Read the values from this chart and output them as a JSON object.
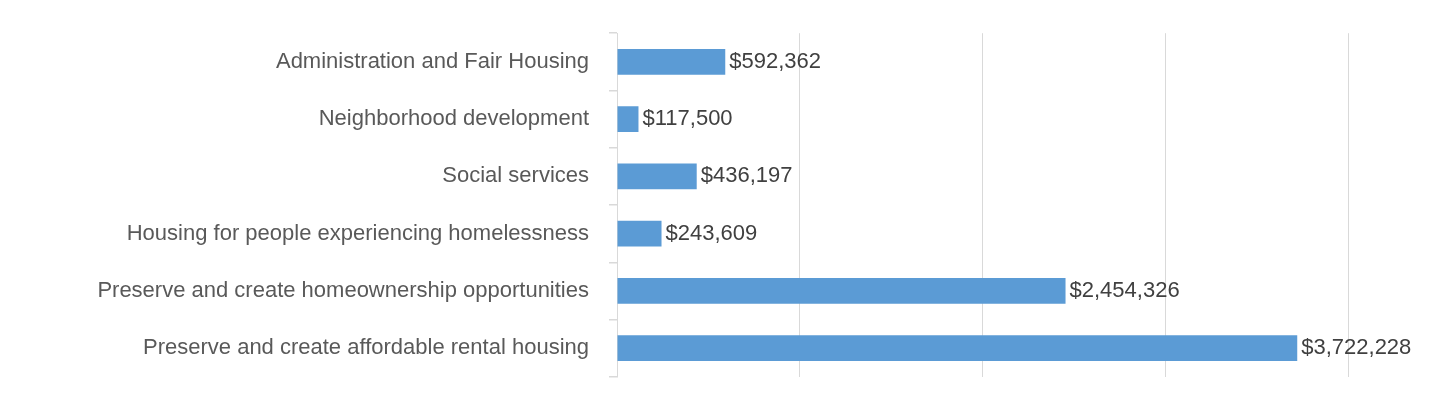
{
  "chart_data": {
    "type": "bar",
    "orientation": "horizontal",
    "categories": [
      "Administration and Fair Housing",
      "Neighborhood development",
      "Social services",
      "Housing for people experiencing homelessness",
      "Preserve and create homeownership opportunities",
      "Preserve and create affordable rental housing"
    ],
    "values": [
      592362,
      117500,
      436197,
      243609,
      2454326,
      3722228
    ],
    "value_labels": [
      "$592,362",
      "$117,500",
      "$436,197",
      "$243,609",
      "$2,454,326",
      "$3,722,228"
    ],
    "color": "#5b9bd5",
    "xlim": [
      0,
      4000000
    ],
    "tick_labels": "y",
    "grid": "x",
    "legend": false
  }
}
